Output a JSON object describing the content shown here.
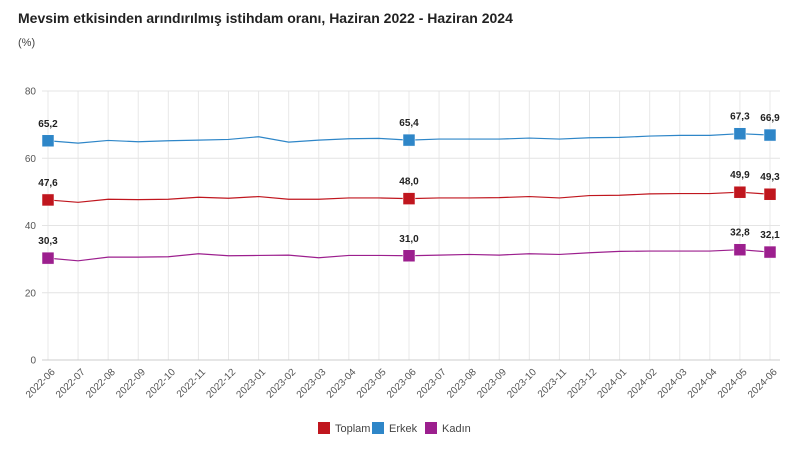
{
  "chart_data": {
    "type": "line",
    "title": "Mevsim etkisinden arındırılmış istihdam oranı, Haziran 2022 - Haziran 2024",
    "ylabel": "(%)",
    "xlabel": "",
    "ylim": [
      0,
      80
    ],
    "yticks": [
      0,
      20,
      40,
      60,
      80
    ],
    "grid": true,
    "legend_position": "bottom",
    "categories": [
      "2022-06",
      "2022-07",
      "2022-08",
      "2022-09",
      "2022-10",
      "2022-11",
      "2022-12",
      "2023-01",
      "2023-02",
      "2023-03",
      "2023-04",
      "2023-05",
      "2023-06",
      "2023-07",
      "2023-08",
      "2023-09",
      "2023-10",
      "2023-11",
      "2023-12",
      "2024-01",
      "2024-02",
      "2024-03",
      "2024-04",
      "2024-05",
      "2024-06"
    ],
    "labeled_indices": [
      0,
      12,
      23,
      24
    ],
    "series": [
      {
        "name": "Toplam",
        "color": "#c0161e",
        "values": [
          47.6,
          46.9,
          47.8,
          47.7,
          47.8,
          48.4,
          48.1,
          48.6,
          47.8,
          47.8,
          48.2,
          48.2,
          48.0,
          48.2,
          48.2,
          48.3,
          48.6,
          48.2,
          48.9,
          49.0,
          49.4,
          49.5,
          49.5,
          49.9,
          49.3
        ]
      },
      {
        "name": "Erkek",
        "color": "#2e86c8",
        "values": [
          65.2,
          64.5,
          65.3,
          64.9,
          65.2,
          65.4,
          65.6,
          66.4,
          64.8,
          65.4,
          65.8,
          65.9,
          65.4,
          65.7,
          65.7,
          65.7,
          66.0,
          65.7,
          66.1,
          66.2,
          66.6,
          66.8,
          66.8,
          67.3,
          66.9
        ]
      },
      {
        "name": "Kadın",
        "color": "#9c1f8e",
        "values": [
          30.3,
          29.5,
          30.6,
          30.6,
          30.7,
          31.6,
          31.0,
          31.1,
          31.2,
          30.4,
          31.1,
          31.1,
          31.0,
          31.2,
          31.4,
          31.2,
          31.6,
          31.4,
          31.9,
          32.3,
          32.4,
          32.4,
          32.4,
          32.8,
          32.1
        ]
      }
    ]
  }
}
